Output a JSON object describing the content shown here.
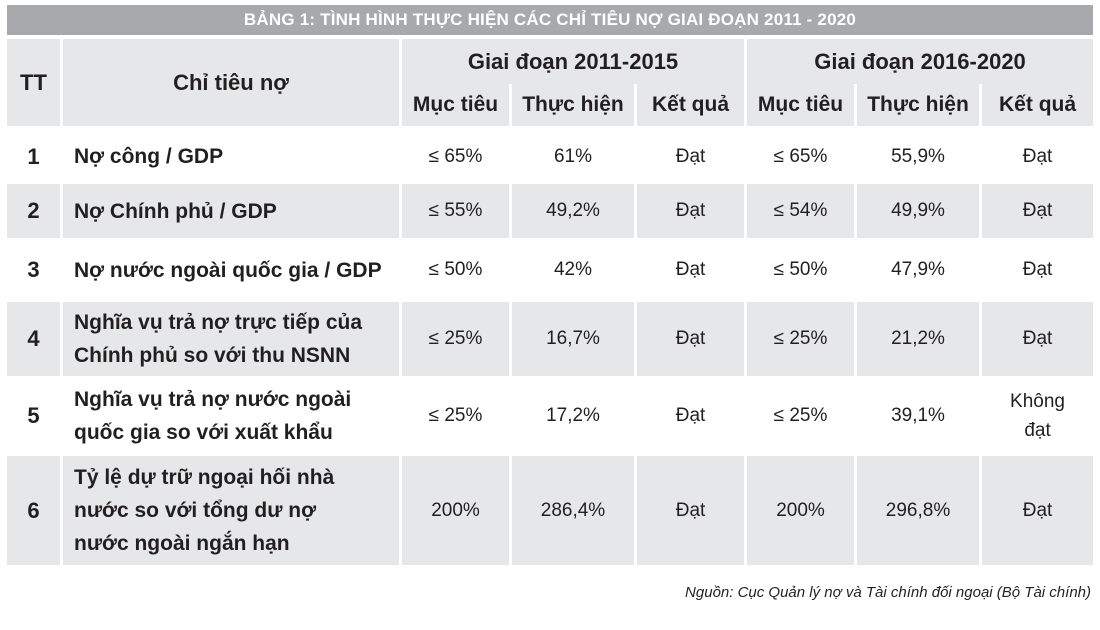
{
  "title": "BẢNG 1: TÌNH HÌNH THỰC HIỆN CÁC CHỈ TIÊU NỢ GIAI ĐOẠN 2011 - 2020",
  "header": {
    "tt": "TT",
    "indicator": "Chỉ tiêu nợ",
    "period1": "Giai đoạn 2011-2015",
    "period2": "Giai đoạn 2016-2020",
    "sub": [
      "Mục tiêu",
      "Thực hiện",
      "Kết quả",
      "Mục tiêu",
      "Thực hiện",
      "Kết quả"
    ]
  },
  "rows": [
    {
      "tt": "1",
      "name": "Nợ công / GDP",
      "p1_target": "≤ 65%",
      "p1_actual": "61%",
      "p1_result": "Đạt",
      "p2_target": "≤ 65%",
      "p2_actual": "55,9%",
      "p2_result": "Đạt"
    },
    {
      "tt": "2",
      "name": "Nợ Chính phủ / GDP",
      "p1_target": "≤ 55%",
      "p1_actual": "49,2%",
      "p1_result": "Đạt",
      "p2_target": "≤ 54%",
      "p2_actual": "49,9%",
      "p2_result": "Đạt"
    },
    {
      "tt": "3",
      "name": "Nợ nước ngoài quốc gia / GDP",
      "p1_target": "≤ 50%",
      "p1_actual": "42%",
      "p1_result": "Đạt",
      "p2_target": "≤ 50%",
      "p2_actual": "47,9%",
      "p2_result": "Đạt"
    },
    {
      "tt": "4",
      "name_lines": [
        "Nghĩa vụ trả nợ trực tiếp của",
        "Chính phủ so với thu NSNN"
      ],
      "p1_target": "≤ 25%",
      "p1_actual": "16,7%",
      "p1_result": "Đạt",
      "p2_target": "≤ 25%",
      "p2_actual": "21,2%",
      "p2_result": "Đạt"
    },
    {
      "tt": "5",
      "name_lines": [
        "Nghĩa vụ trả nợ nước ngoài",
        "quốc gia so với xuất khẩu"
      ],
      "p1_target": "≤ 25%",
      "p1_actual": "17,2%",
      "p1_result": "Đạt",
      "p2_target": "≤ 25%",
      "p2_actual": "39,1%",
      "p2_result_lines": [
        "Không",
        "đạt"
      ]
    },
    {
      "tt": "6",
      "name_lines": [
        "Tỷ lệ dự trữ ngoại hối nhà",
        "nước so với tổng dư nợ",
        "nước ngoài ngắn hạn"
      ],
      "p1_target": "200%",
      "p1_actual": "286,4%",
      "p1_result": "Đạt",
      "p2_target": "200%",
      "p2_actual": "296,8%",
      "p2_result": "Đạt"
    }
  ],
  "source": "Nguồn: Cục Quản lý nợ và Tài chính đối ngoại (Bộ Tài chính)"
}
